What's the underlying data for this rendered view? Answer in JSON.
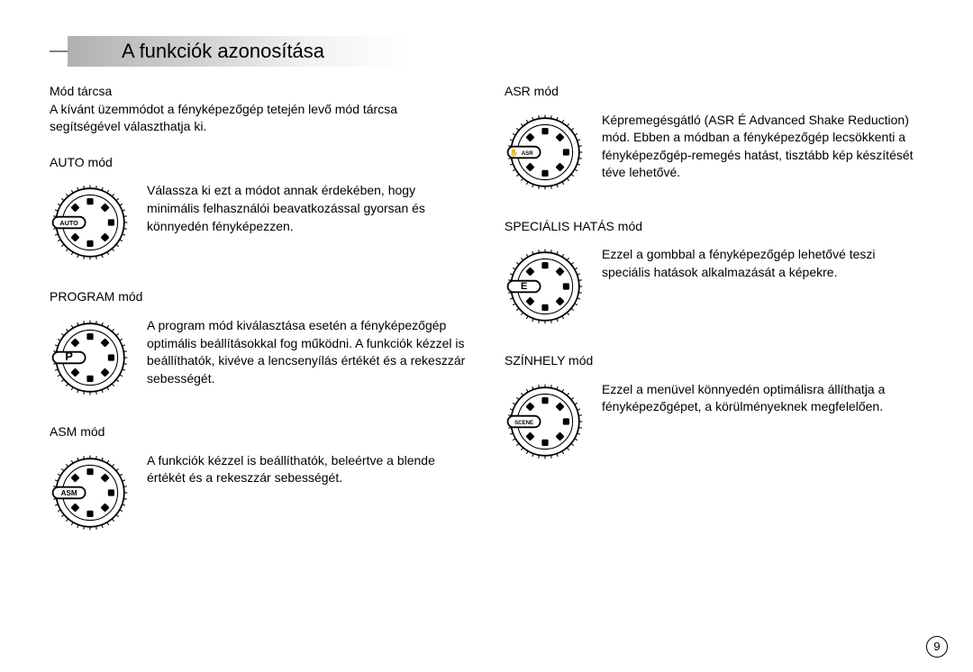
{
  "pageTitle": "A funkciók azonosítása",
  "pageNumber": "9",
  "left": {
    "introTitle": "Mód tárcsa",
    "introBody": "A kívánt üzemmódot a fényképezőgép tetején levő mód tárcsa segítségével választhatja ki.",
    "modes": [
      {
        "key": "auto",
        "title": "AUTO mód",
        "desc": "Válassza ki ezt a módot annak érdekében, hogy minimális felhasználói beavatkozással gyorsan és könnyedén fényképezzen.",
        "dialLabel": "AUTO",
        "labelScale": 0.9
      },
      {
        "key": "program",
        "title": "PROGRAM mód",
        "desc": "A program mód kiválasztása esetén a fényképezőgép optimális beállításokkal fog működni. A funkciók kézzel is beállíthatók, kivéve a lencsenyílás értékét és a rekeszzár sebességét.",
        "dialLabel": "P",
        "labelScale": 1.6
      },
      {
        "key": "asm",
        "title": "ASM mód",
        "desc": "A funkciók kézzel is beállíthatók, beleértve a blende értékét és a rekeszzár sebességét.",
        "dialLabel": "ASM",
        "labelScale": 1.0
      }
    ]
  },
  "right": {
    "modes": [
      {
        "key": "asr",
        "title": "ASR mód",
        "desc": "Képremegésgátló (ASR É Advanced Shake Reduction) mód. Ebben a módban a fényképezőgép lecsökkenti a fényképezőgép-remegés hatást, tisztább kép készítését téve lehetővé.",
        "dialLabel": "ASR",
        "labelScale": 0.75,
        "iconBefore": "hand"
      },
      {
        "key": "special",
        "title": "SPECIÁLIS HATÁS mód",
        "desc": "Ezzel a gombbal a fényképezőgép lehetővé teszi speciális hatások alkalmazását a képekre.",
        "dialLabel": "E",
        "labelScale": 1.4
      },
      {
        "key": "scene",
        "title": "SZÍNHELY mód",
        "desc": "Ezzel a menüvel könnyedén optimálisra állíthatja a fényképezőgépet, a körülményeknek megfelelően.",
        "dialLabel": "SCENE",
        "labelScale": 0.75
      }
    ]
  },
  "colors": {
    "text": "#000000",
    "background": "#ffffff",
    "titleGradientStart": "#b0b0b0",
    "titleGradientEnd": "#ffffff",
    "dialStroke": "#000000"
  }
}
